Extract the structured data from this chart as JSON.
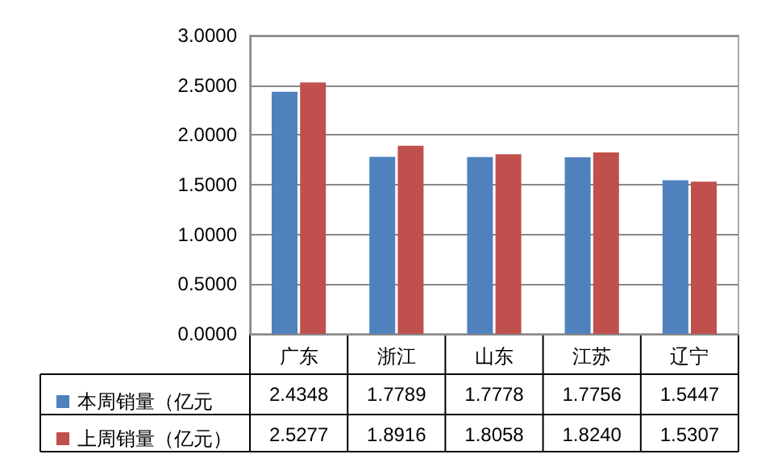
{
  "chart_data": {
    "type": "bar",
    "categories": [
      "广东",
      "浙江",
      "山东",
      "江苏",
      "辽宁"
    ],
    "series": [
      {
        "name": "本周销量（亿元",
        "color": "#4f81bd",
        "values": [
          2.4348,
          1.7789,
          1.7778,
          1.7756,
          1.5447
        ],
        "value_labels": [
          "2.4348",
          "1.7789",
          "1.7778",
          "1.7756",
          "1.5447"
        ]
      },
      {
        "name": "上周销量（亿元）",
        "color": "#c0504d",
        "values": [
          2.5277,
          1.8916,
          1.8058,
          1.824,
          1.5307
        ],
        "value_labels": [
          "2.5277",
          "1.8916",
          "1.8058",
          "1.8240",
          "1.5307"
        ]
      }
    ],
    "ylim": [
      0,
      3
    ],
    "yticks": [
      {
        "value": 0,
        "label": "0.0000"
      },
      {
        "value": 0.5,
        "label": "0.5000"
      },
      {
        "value": 1,
        "label": "1.0000"
      },
      {
        "value": 1.5,
        "label": "1.5000"
      },
      {
        "value": 2,
        "label": "2.0000"
      },
      {
        "value": 2.5,
        "label": "2.5000"
      },
      {
        "value": 3,
        "label": "3.0000"
      }
    ],
    "grid": true,
    "legend": "bottom left"
  }
}
